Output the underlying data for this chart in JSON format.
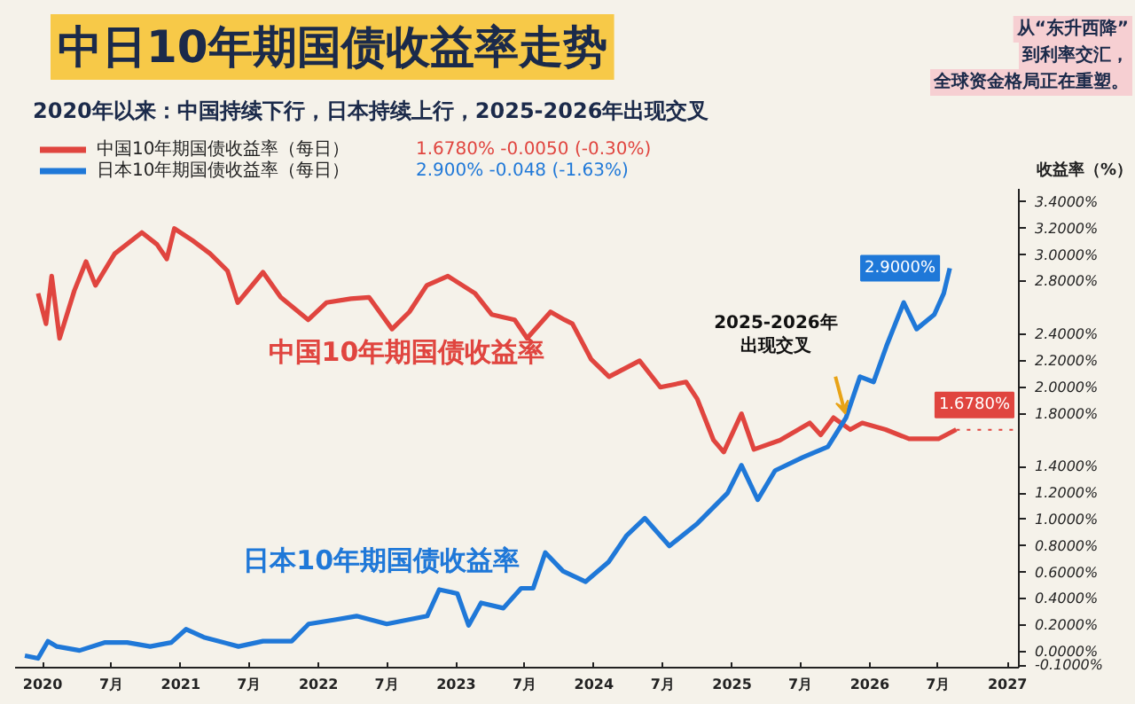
{
  "chart_data": {
    "type": "line",
    "title": "中日10年期国债收益率走势",
    "subtitle": "2020年以来：中国持续下行，日本持续上行，2025-2026年出现交叉",
    "ylabel": "收益率（%）",
    "legend": "top left",
    "marker": "none",
    "line_style": "solid",
    "xlim": [
      "2019-10-20",
      "2027-01-31"
    ],
    "xticks": [
      {
        "value": "2020-01-01",
        "label": "2020"
      },
      {
        "value": "2020-07-01",
        "label": "7月"
      },
      {
        "value": "2021-01-01",
        "label": "2021"
      },
      {
        "value": "2021-07-01",
        "label": "7月"
      },
      {
        "value": "2022-01-01",
        "label": "2022"
      },
      {
        "value": "2022-07-01",
        "label": "7月"
      },
      {
        "value": "2023-01-01",
        "label": "2023"
      },
      {
        "value": "2023-07-01",
        "label": "7月"
      },
      {
        "value": "2024-01-01",
        "label": "2024"
      },
      {
        "value": "2024-07-01",
        "label": "7月"
      },
      {
        "value": "2025-01-01",
        "label": "2025"
      },
      {
        "value": "2025-07-01",
        "label": "7月"
      },
      {
        "value": "2026-01-01",
        "label": "2026"
      },
      {
        "value": "2026-07-01",
        "label": "7月"
      },
      {
        "value": "2027-01-01",
        "label": "2027"
      }
    ],
    "ylim": [
      -0.12,
      3.5
    ],
    "yticks": [
      {
        "value": 3.4,
        "label": "3.4000%"
      },
      {
        "value": 3.2,
        "label": "3.2000%"
      },
      {
        "value": 3.0,
        "label": "3.0000%"
      },
      {
        "value": 2.8,
        "label": "2.8000%"
      },
      {
        "value": 2.4,
        "label": "2.4000%"
      },
      {
        "value": 2.2,
        "label": "2.2000%"
      },
      {
        "value": 2.0,
        "label": "2.0000%"
      },
      {
        "value": 1.8,
        "label": "1.8000%"
      },
      {
        "value": 1.4,
        "label": "1.4000%"
      },
      {
        "value": 1.2,
        "label": "1.2000%"
      },
      {
        "value": 1.0,
        "label": "1.0000%"
      },
      {
        "value": 0.8,
        "label": "0.8000%"
      },
      {
        "value": 0.6,
        "label": "0.6000%"
      },
      {
        "value": 0.4,
        "label": "0.4000%"
      },
      {
        "value": 0.2,
        "label": "0.2000%"
      },
      {
        "value": 0.0,
        "label": "0.0000%"
      },
      {
        "value": -0.1,
        "label": "-0.1000%"
      }
    ],
    "series": [
      {
        "name": "中国10年期国债收益率（每日）",
        "color": "#e0453f",
        "x": [
          "2019-12-20",
          "2020-01-10",
          "2020-01-25",
          "2020-02-15",
          "2020-03-25",
          "2020-04-25",
          "2020-05-20",
          "2020-07-10",
          "2020-09-20",
          "2020-10-30",
          "2020-11-25",
          "2020-12-15",
          "2021-02-01",
          "2021-03-20",
          "2021-05-05",
          "2021-06-01",
          "2021-08-07",
          "2021-09-23",
          "2021-12-05",
          "2022-01-22",
          "2022-03-28",
          "2022-05-15",
          "2022-07-15",
          "2022-08-30",
          "2022-10-15",
          "2022-12-10",
          "2023-02-20",
          "2023-04-05",
          "2023-06-05",
          "2023-07-08",
          "2023-09-08",
          "2023-10-15",
          "2023-11-05",
          "2023-12-25",
          "2024-02-10",
          "2024-05-01",
          "2024-06-25",
          "2024-09-01",
          "2024-10-01",
          "2024-11-13",
          "2024-12-10",
          "2025-01-26",
          "2025-02-28",
          "2025-05-08",
          "2025-07-26",
          "2025-08-24",
          "2025-09-27",
          "2025-11-10",
          "2025-12-12",
          "2026-02-12",
          "2026-04-15",
          "2026-07-02",
          "2026-08-18"
        ],
        "values": [
          2.71,
          2.48,
          2.84,
          2.37,
          2.73,
          2.95,
          2.77,
          3.01,
          3.17,
          3.08,
          2.97,
          3.2,
          3.11,
          3.01,
          2.88,
          2.64,
          2.87,
          2.68,
          2.51,
          2.64,
          2.67,
          2.68,
          2.44,
          2.57,
          2.77,
          2.84,
          2.71,
          2.55,
          2.51,
          2.37,
          2.57,
          2.51,
          2.48,
          2.21,
          2.08,
          2.2,
          2.0,
          2.04,
          1.91,
          1.6,
          1.51,
          1.8,
          1.53,
          1.6,
          1.73,
          1.64,
          1.77,
          1.68,
          1.73,
          1.68,
          1.61,
          1.61,
          1.68
        ]
      },
      {
        "name": "日本10年期国债收益率（每日）",
        "color": "#1f78d8",
        "x": [
          "2019-11-15",
          "2019-12-20",
          "2020-01-15",
          "2020-02-08",
          "2020-04-08",
          "2020-06-13",
          "2020-08-12",
          "2020-10-12",
          "2020-12-07",
          "2021-01-15",
          "2021-03-03",
          "2021-06-03",
          "2021-08-07",
          "2021-10-22",
          "2021-12-06",
          "2022-02-10",
          "2022-04-12",
          "2022-07-01",
          "2022-10-16",
          "2022-11-17",
          "2023-01-04",
          "2023-02-03",
          "2023-03-08",
          "2023-05-06",
          "2023-06-22",
          "2023-07-24",
          "2023-08-25",
          "2023-10-11",
          "2023-12-10",
          "2024-02-09",
          "2024-03-28",
          "2024-05-15",
          "2024-07-19",
          "2024-10-01",
          "2024-12-20",
          "2025-01-26",
          "2025-03-10",
          "2025-04-25",
          "2025-07-07",
          "2025-09-12",
          "2025-10-30",
          "2025-12-06",
          "2026-01-11",
          "2026-02-14",
          "2026-04-01",
          "2026-05-05",
          "2026-06-21",
          "2026-07-16",
          "2026-08-01"
        ],
        "values": [
          -0.03,
          -0.05,
          0.08,
          0.04,
          0.01,
          0.07,
          0.07,
          0.04,
          0.07,
          0.17,
          0.11,
          0.04,
          0.08,
          0.08,
          0.21,
          0.24,
          0.27,
          0.21,
          0.27,
          0.47,
          0.44,
          0.2,
          0.37,
          0.33,
          0.48,
          0.48,
          0.75,
          0.61,
          0.53,
          0.68,
          0.88,
          1.01,
          0.8,
          0.97,
          1.2,
          1.41,
          1.15,
          1.37,
          1.47,
          1.55,
          1.77,
          2.08,
          2.04,
          2.31,
          2.64,
          2.44,
          2.55,
          2.71,
          2.9
        ],
        "value_labels": [
          null,
          null,
          null,
          null,
          null,
          null,
          null,
          null,
          null,
          null,
          null,
          null,
          null,
          null,
          null,
          null,
          null,
          null,
          null,
          null,
          null,
          null,
          null,
          null,
          null,
          null,
          null,
          null,
          null,
          null,
          null,
          null,
          null,
          null,
          null,
          null,
          null,
          null,
          null,
          null,
          null,
          null,
          null,
          null,
          null,
          null,
          null,
          null,
          "2.9000%"
        ]
      }
    ],
    "ref_lines": [
      {
        "axis": "y",
        "value": 1.678,
        "label": "1.6780%",
        "color": "#e0453f",
        "line_style": "dotted"
      }
    ],
    "annotations": [
      "1.6780%  -0.0050  (-0.30%)",
      "2.900%  -0.048  (-1.63%)",
      "中国10年期国债收益率",
      "日本10年期国债收益率",
      {
        "text": "2025-2026年出现交叉",
        "x": "2025-11-01",
        "y": 1.72
      },
      "从“东升西降”",
      "到利率交汇，",
      "全球资金格局正在重塑。"
    ]
  }
}
